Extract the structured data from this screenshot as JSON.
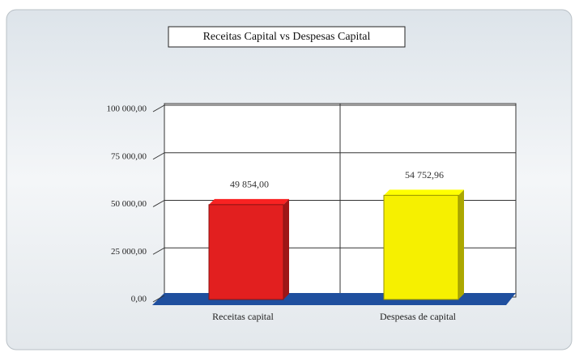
{
  "chart_data": {
    "type": "bar",
    "title": "Receitas Capital vs Despesas Capital",
    "categories": [
      "Receitas capital",
      "Despesas de capital"
    ],
    "values": [
      49854,
      54752.96
    ],
    "value_labels": [
      "49 854,00",
      "54 752,96"
    ],
    "colors": [
      "#e21f1f",
      "#f6f000"
    ],
    "ylim": [
      0,
      100000
    ],
    "yticks": [
      {
        "value": 0,
        "label": "0,00"
      },
      {
        "value": 25000,
        "label": "25 000,00"
      },
      {
        "value": 50000,
        "label": "50 000,00"
      },
      {
        "value": 75000,
        "label": "75 000,00"
      },
      {
        "value": 100000,
        "label": "100 000,00"
      }
    ],
    "grid": true
  }
}
